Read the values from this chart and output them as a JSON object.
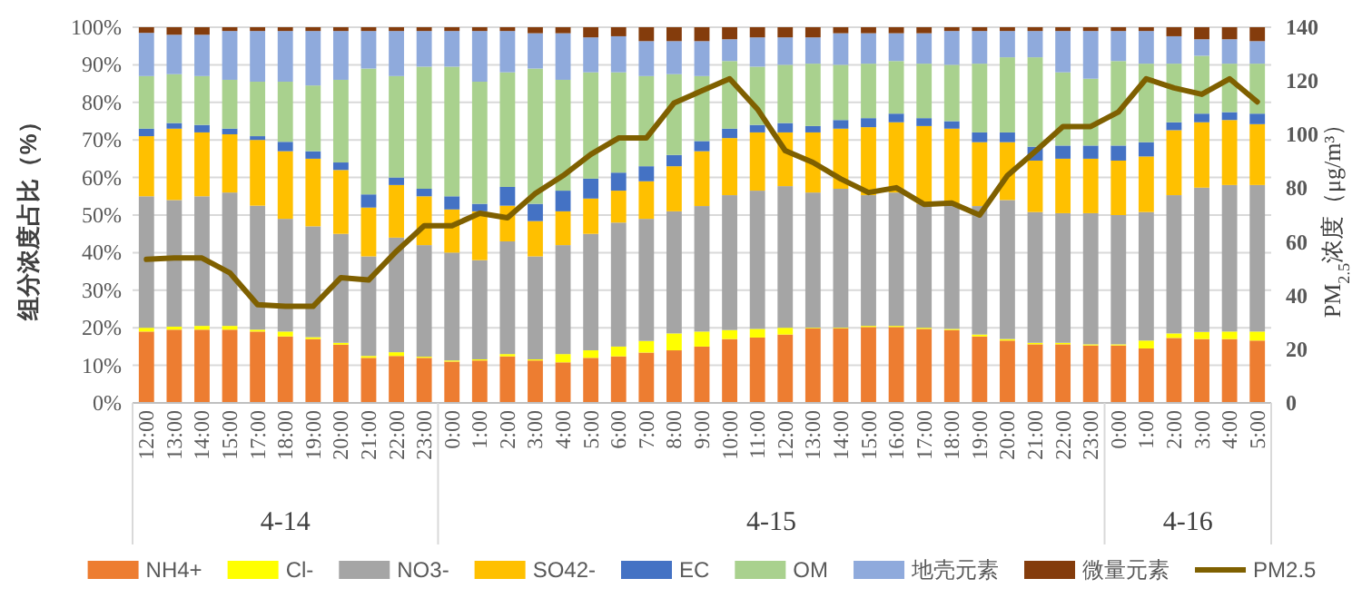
{
  "chart_data": {
    "type": "bar",
    "stacked": true,
    "categories": [
      "12:00",
      "13:00",
      "14:00",
      "15:00",
      "17:00",
      "18:00",
      "19:00",
      "20:00",
      "21:00",
      "22:00",
      "23:00",
      "0:00",
      "1:00",
      "2:00",
      "3:00",
      "4:00",
      "5:00",
      "6:00",
      "7:00",
      "8:00",
      "9:00",
      "10:00",
      "11:00",
      "12:00",
      "13:00",
      "14:00",
      "15:00",
      "16:00",
      "17:00",
      "18:00",
      "19:00",
      "20:00",
      "21:00",
      "22:00",
      "23:00",
      "0:00",
      "1:00",
      "2:00",
      "3:00",
      "4:00",
      "5:00"
    ],
    "ylabel": "组分浓度占比（%）",
    "y2label": "PM$_{2.5}$浓度（μg/m³）",
    "ylim": [
      0,
      100
    ],
    "yticks": [
      {
        "value": 0,
        "label": "0%"
      },
      {
        "value": 10,
        "label": "10%"
      },
      {
        "value": 20,
        "label": "20%"
      },
      {
        "value": 30,
        "label": "30%"
      },
      {
        "value": 40,
        "label": "40%"
      },
      {
        "value": 50,
        "label": "50%"
      },
      {
        "value": 60,
        "label": "60%"
      },
      {
        "value": 70,
        "label": "70%"
      },
      {
        "value": 80,
        "label": "80%"
      },
      {
        "value": 90,
        "label": "90%"
      },
      {
        "value": 100,
        "label": "100%"
      }
    ],
    "y2lim": [
      0,
      140
    ],
    "y2ticks": [
      0,
      20,
      40,
      60,
      80,
      100,
      120,
      140
    ],
    "grid": "y",
    "legend": "bottom",
    "annotations": [
      "4-14",
      "4-15",
      "4-16"
    ],
    "series": [
      {
        "name": "NH4+",
        "color": "#ed7d31",
        "values": [
          19,
          19.5,
          19.5,
          19.5,
          19,
          17.7,
          17,
          15.5,
          12,
          12.5,
          12,
          11,
          11.3,
          12.4,
          11.3,
          10.8,
          12,
          12.4,
          13.4,
          14,
          15,
          17,
          17.4,
          18.2,
          19.8,
          19.8,
          20.2,
          20.2,
          19.7,
          19.4,
          17.7,
          16.6,
          15.6,
          15.6,
          15.3,
          15.3,
          14.5,
          17.3,
          17,
          17,
          16.6
        ]
      },
      {
        "name": "Cl-",
        "color": "#ffff00",
        "values": [
          1,
          0.8,
          1,
          1,
          0.5,
          1.3,
          0.5,
          0.5,
          0.5,
          1,
          0.3,
          0.3,
          0.3,
          0.6,
          0.3,
          2.2,
          2,
          2.6,
          3.1,
          4.5,
          4,
          2.4,
          2.3,
          1.8,
          0.2,
          0.2,
          0.3,
          0.3,
          0.3,
          0.3,
          0.5,
          0.4,
          0.4,
          0.4,
          0.3,
          0.3,
          2.1,
          1.2,
          1.9,
          2,
          2.4
        ]
      },
      {
        "name": "NO3-",
        "color": "#a5a5a5",
        "values": [
          35,
          33.7,
          34.5,
          35.5,
          33,
          30,
          29.5,
          29,
          26.5,
          30.5,
          29.7,
          28.7,
          26.4,
          30,
          27.4,
          29,
          31,
          33,
          32.5,
          32.5,
          33.4,
          35.9,
          36.8,
          37.7,
          36,
          37,
          34.8,
          35.5,
          33,
          33.3,
          34.2,
          37,
          34.8,
          34.5,
          34.9,
          34.4,
          34.2,
          36.8,
          38.4,
          39,
          39
        ]
      },
      {
        "name": "SO42-",
        "color": "#ffc000",
        "values": [
          16,
          19,
          17,
          15.5,
          17.5,
          18,
          18,
          17,
          13,
          14,
          13,
          11.5,
          13,
          9.5,
          9.4,
          9,
          9.4,
          8.5,
          10,
          12,
          14.6,
          15.2,
          15.5,
          14.3,
          16,
          16,
          18.1,
          18.7,
          20.7,
          20,
          17,
          15.4,
          13.7,
          14.5,
          14.5,
          14.5,
          14.8,
          17.3,
          17.4,
          17.3,
          16.2
        ]
      },
      {
        "name": "EC",
        "color": "#4472c4",
        "values": [
          2,
          1.5,
          2,
          1.5,
          1,
          2.5,
          2,
          2,
          3.5,
          2,
          2,
          3.5,
          2,
          5,
          4.6,
          5.5,
          5.3,
          4.8,
          4,
          3,
          2.7,
          2.5,
          2,
          2.5,
          1.7,
          2.3,
          2.4,
          2.3,
          2.1,
          2,
          2.6,
          2.6,
          3.7,
          3.5,
          3.5,
          4,
          3.8,
          2.1,
          2.3,
          2.1,
          2.8
        ]
      },
      {
        "name": "OM",
        "color": "#a9d18e",
        "values": [
          14,
          13,
          13,
          13,
          14.5,
          16,
          17.5,
          22,
          33.5,
          27,
          32.5,
          34.5,
          32.5,
          30.5,
          36,
          29.5,
          28.3,
          26.7,
          24,
          21.5,
          17.3,
          18,
          15.5,
          15.5,
          16.6,
          14.7,
          14.5,
          14,
          14.5,
          15,
          18.3,
          20,
          23.8,
          19.5,
          17.8,
          22.5,
          20.9,
          15.6,
          15.4,
          12.9,
          13.3
        ]
      },
      {
        "name": "地壳元素",
        "color": "#8faadc",
        "values": [
          11.5,
          10.5,
          11,
          13,
          13.5,
          13.5,
          14.5,
          13,
          10,
          12,
          9.5,
          9.5,
          13.5,
          11,
          9.4,
          12.4,
          9.3,
          9.6,
          9.3,
          8.8,
          9.3,
          5.8,
          7.8,
          7.3,
          7,
          8.4,
          8.1,
          7.4,
          8.1,
          9,
          8.7,
          7,
          7,
          11,
          12.7,
          8,
          8.7,
          7.3,
          4.4,
          6.5,
          6
        ]
      },
      {
        "name": "微量元素",
        "color": "#843c0c",
        "values": [
          1.5,
          2,
          2,
          1,
          1,
          1,
          1,
          1,
          1,
          1,
          1,
          1,
          1,
          1,
          1.6,
          1.6,
          2.7,
          2.4,
          3.7,
          3.7,
          3.7,
          3.2,
          2.7,
          2.7,
          2.7,
          1.6,
          1.6,
          1.6,
          1.6,
          1,
          1,
          1,
          1,
          1,
          1,
          1,
          1,
          2.4,
          3.2,
          3.2,
          3.7
        ]
      },
      {
        "name": "PM2.5",
        "type": "line",
        "axis": "y2",
        "color": "#7f6000",
        "values": [
          53.5,
          54,
          54,
          48.5,
          36.6,
          36,
          36,
          46.7,
          45.8,
          56.5,
          66,
          66,
          70.7,
          69,
          78,
          84.7,
          92.6,
          98.7,
          98.7,
          111.8,
          116.3,
          120.8,
          109.5,
          94,
          89.6,
          83.5,
          78.4,
          80.2,
          74,
          74.5,
          70,
          84.7,
          93.7,
          103,
          103,
          108.4,
          120.8,
          117.4,
          115,
          120.8,
          112.2
        ]
      }
    ]
  }
}
